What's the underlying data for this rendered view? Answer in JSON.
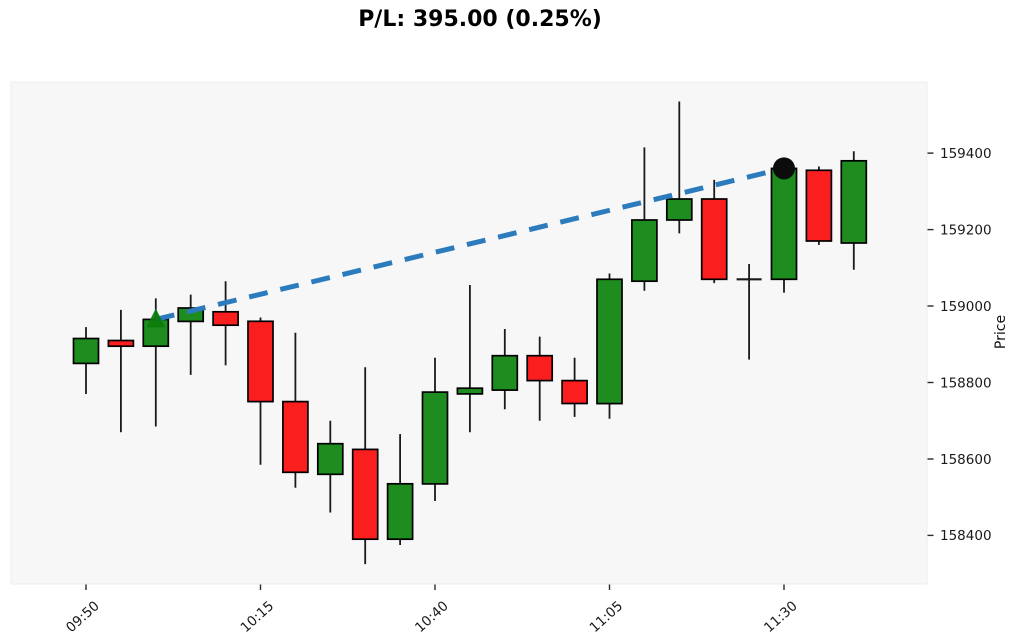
{
  "title": "P/L: 395.00 (0.25%)",
  "chart_data": {
    "type": "candlestick",
    "title": "P/L: 395.00 (0.25%)",
    "ylabel": "Price",
    "interval_minutes": 5,
    "x_tick_labels": [
      "09:50",
      "10:15",
      "10:40",
      "11:05",
      "11:30"
    ],
    "x_tick_indices": [
      0,
      5,
      10,
      15,
      20
    ],
    "y_ticks": [
      158400,
      158600,
      158800,
      159000,
      159200,
      159400
    ],
    "ylim": [
      158273,
      159586
    ],
    "grid": false,
    "legend": null,
    "candles": [
      {
        "time": "09:50",
        "open": 158850,
        "high": 158945,
        "low": 158770,
        "close": 158915
      },
      {
        "time": "09:55",
        "open": 158910,
        "high": 158990,
        "low": 158670,
        "close": 158895
      },
      {
        "time": "10:00",
        "open": 158895,
        "high": 159020,
        "low": 158685,
        "close": 158965
      },
      {
        "time": "10:05",
        "open": 158960,
        "high": 159030,
        "low": 158820,
        "close": 158995
      },
      {
        "time": "10:10",
        "open": 158985,
        "high": 159065,
        "low": 158845,
        "close": 158950
      },
      {
        "time": "10:15",
        "open": 158960,
        "high": 158970,
        "low": 158585,
        "close": 158750
      },
      {
        "time": "10:20",
        "open": 158750,
        "high": 158930,
        "low": 158525,
        "close": 158565
      },
      {
        "time": "10:25",
        "open": 158560,
        "high": 158700,
        "low": 158460,
        "close": 158640
      },
      {
        "time": "10:30",
        "open": 158625,
        "high": 158840,
        "low": 158325,
        "close": 158390
      },
      {
        "time": "10:35",
        "open": 158390,
        "high": 158665,
        "low": 158375,
        "close": 158535
      },
      {
        "time": "10:40",
        "open": 158535,
        "high": 158865,
        "low": 158490,
        "close": 158775
      },
      {
        "time": "10:45",
        "open": 158770,
        "high": 159055,
        "low": 158670,
        "close": 158785
      },
      {
        "time": "10:50",
        "open": 158780,
        "high": 158940,
        "low": 158730,
        "close": 158870
      },
      {
        "time": "10:55",
        "open": 158870,
        "high": 158920,
        "low": 158700,
        "close": 158805
      },
      {
        "time": "11:00",
        "open": 158805,
        "high": 158865,
        "low": 158710,
        "close": 158745
      },
      {
        "time": "11:05",
        "open": 158745,
        "high": 159085,
        "low": 158705,
        "close": 159070
      },
      {
        "time": "11:10",
        "open": 159065,
        "high": 159415,
        "low": 159040,
        "close": 159225
      },
      {
        "time": "11:15",
        "open": 159225,
        "high": 159535,
        "low": 159190,
        "close": 159280
      },
      {
        "time": "11:20",
        "open": 159280,
        "high": 159330,
        "low": 159060,
        "close": 159070
      },
      {
        "time": "11:25",
        "open": 159070,
        "high": 159110,
        "low": 158860,
        "close": 159070
      },
      {
        "time": "11:30",
        "open": 159070,
        "high": 159360,
        "low": 159035,
        "close": 159360
      },
      {
        "time": "11:35",
        "open": 159355,
        "high": 159365,
        "low": 159160,
        "close": 159170
      },
      {
        "time": "11:40",
        "open": 159165,
        "high": 159405,
        "low": 159095,
        "close": 159380
      }
    ],
    "trade": {
      "entry_time": "10:00",
      "entry_index": 2,
      "entry_price": 158965,
      "exit_time": "11:30",
      "exit_index": 20,
      "exit_price": 159360,
      "pnl": "395.00",
      "pnl_pct": "0.25%",
      "line_style": "dashed"
    },
    "colors": {
      "up": "#1e8c1e",
      "down": "#fa1e1e",
      "candle_edge": "#000000",
      "wick": "#1a1a1a",
      "doji": "#1a1a1a",
      "trade_line": "#2b7bbd",
      "entry_marker": "#0d7c0d",
      "exit_marker": "#0c0c0c",
      "plot_bg": "#f7f7f8"
    }
  }
}
